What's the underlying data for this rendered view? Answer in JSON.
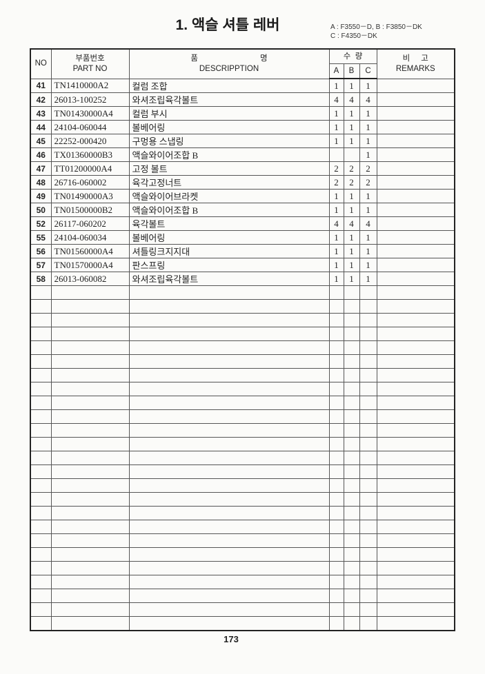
{
  "title": "1. 액슬 셔틀 레버",
  "models": {
    "line1": "A : F3550－D, B : F3850－DK",
    "line2": "C : F4350－DK"
  },
  "header": {
    "no": "NO",
    "part_ko": "부품번호",
    "part_en": "PART NO",
    "desc_ko_1": "품",
    "desc_ko_2": "명",
    "desc_en": "DESCRIPPTION",
    "qty_ko": "수  량",
    "a": "A",
    "b": "B",
    "c": "C",
    "remarks_ko": "비     고",
    "remarks_en": "REMARKS"
  },
  "rows": [
    {
      "no": "41",
      "part": "TN1410000A2",
      "desc": "컬럼 조합",
      "a": "1",
      "b": "1",
      "c": "1"
    },
    {
      "no": "42",
      "part": "26013-100252",
      "desc": "와셔조립육각볼트",
      "a": "4",
      "b": "4",
      "c": "4"
    },
    {
      "no": "43",
      "part": "TN01430000A4",
      "desc": "컬럼 부시",
      "a": "1",
      "b": "1",
      "c": "1"
    },
    {
      "no": "44",
      "part": "24104-060044",
      "desc": "볼베어링",
      "a": "1",
      "b": "1",
      "c": "1"
    },
    {
      "no": "45",
      "part": "22252-000420",
      "desc": "구멍용 스냅링",
      "a": "1",
      "b": "1",
      "c": "1"
    },
    {
      "no": "46",
      "part": "TX01360000B3",
      "desc": "액슬와이어조합 B",
      "a": "",
      "b": "",
      "c": "1"
    },
    {
      "no": "47",
      "part": "TT01200000A4",
      "desc": "고정 볼트",
      "a": "2",
      "b": "2",
      "c": "2"
    },
    {
      "no": "48",
      "part": "26716-060002",
      "desc": "육각고정너트",
      "a": "2",
      "b": "2",
      "c": "2"
    },
    {
      "no": "49",
      "part": "TN01490000A3",
      "desc": "액슬와이어브라켓",
      "a": "1",
      "b": "1",
      "c": "1"
    },
    {
      "no": "50",
      "part": "TN01500000B2",
      "desc": "액슬와이어조합 B",
      "a": "1",
      "b": "1",
      "c": "1"
    },
    {
      "no": "52",
      "part": "26117-060202",
      "desc": "육각볼트",
      "a": "4",
      "b": "4",
      "c": "4"
    },
    {
      "no": "55",
      "part": "24104-060034",
      "desc": "볼베어링",
      "a": "1",
      "b": "1",
      "c": "1"
    },
    {
      "no": "56",
      "part": "TN01560000A4",
      "desc": "셔틀링크지지대",
      "a": "1",
      "b": "1",
      "c": "1"
    },
    {
      "no": "57",
      "part": "TN01570000A4",
      "desc": "판스프링",
      "a": "1",
      "b": "1",
      "c": "1"
    },
    {
      "no": "58",
      "part": "26013-060082",
      "desc": "와셔조립육각볼트",
      "a": "1",
      "b": "1",
      "c": "1"
    }
  ],
  "page_number": "173"
}
